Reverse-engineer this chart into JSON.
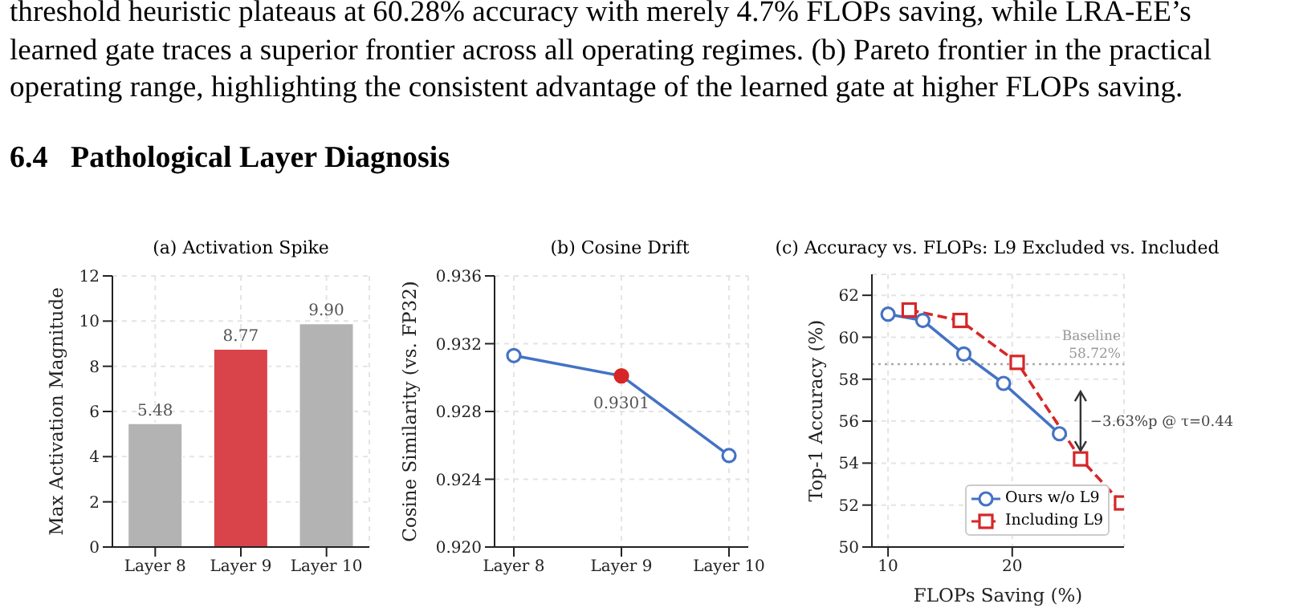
{
  "chart_data": [
    {
      "type": "bar",
      "title": "(a) Activation Spike",
      "ylabel": "Max Activation Magnitude",
      "annotations": [
        "threshold heuristic plateaus at 60.28% accuracy with merely 4.7% FLOPs saving, while LRA-EE’s",
        "learned gate traces a superior frontier across all operating regimes. (b) Pareto frontier in the practical",
        "operating range, highlighting the consistent advantage of the learned gate at higher FLOPs saving.",
        "6.4   Pathological Layer Diagnosis"
      ],
      "categories": [
        "Layer 8",
        "Layer 9",
        "Layer 10"
      ],
      "values": [
        5.48,
        8.77,
        9.9
      ],
      "colors": [
        "#b3b3b3",
        "#d9434a",
        "#b3b3b3"
      ],
      "value_labels": [
        "5.48",
        "8.77",
        "9.90"
      ],
      "ylim": [
        0,
        12
      ],
      "yticks": [
        0,
        2,
        4,
        6,
        8,
        10,
        12
      ],
      "grid": true
    },
    {
      "type": "line",
      "title": "(b) Cosine Drift",
      "ylabel": "Cosine Similarity (vs. FP32)",
      "categories": [
        "Layer 8",
        "Layer 9",
        "Layer 10"
      ],
      "series": [
        {
          "color": "#4472c4",
          "values": [
            0.9313,
            0.9301,
            0.9254
          ],
          "colors": [
            "#4472c4",
            "#d62728",
            "#4472c4"
          ],
          "value_labels": [
            null,
            "0.9301",
            null
          ]
        }
      ],
      "marker": "circle",
      "ylim": [
        0.92,
        0.936
      ],
      "yticks": [
        {
          "value": 0.92,
          "label": "0.920"
        },
        0.924,
        0.928,
        0.932,
        0.936
      ],
      "grid": true
    },
    {
      "type": "line",
      "title": "(c) Accuracy vs. FLOPs: L9 Excluded vs. Included",
      "xlabel": "FLOPs Saving (%)",
      "ylabel": "Top-1 Accuracy (%)",
      "series": [
        {
          "name": "Ours w/o L9",
          "color": "#4472c4",
          "marker": "circle",
          "line_style": "solid",
          "x": [
            10,
            12.8,
            16.1,
            19.3,
            23.8
          ],
          "values": [
            61.1,
            60.8,
            59.2,
            57.8,
            55.4
          ]
        },
        {
          "name": "Including L9",
          "color": "#d62728",
          "marker": "square",
          "line_style": "dashed",
          "x": [
            11.7,
            15.8,
            20.4,
            25.5,
            28.8
          ],
          "values": [
            61.3,
            60.8,
            58.8,
            54.2,
            52.1
          ]
        }
      ],
      "xlim": [
        8.7,
        29
      ],
      "xticks": [
        10,
        20
      ],
      "ylim": [
        50,
        63
      ],
      "yticks": [
        50,
        52,
        54,
        56,
        58,
        60,
        62
      ],
      "ref_lines": [
        {
          "axis": "y",
          "value": 58.72,
          "label": "Baseline\n58.72%",
          "color": "#aaaaaa",
          "line_style": "dotted"
        }
      ],
      "annotations": [
        {
          "text": "−3.63%p @ τ=0.44",
          "x": 25.5,
          "y": 54.2
        }
      ],
      "legend": "bottom right",
      "grid": true
    }
  ]
}
